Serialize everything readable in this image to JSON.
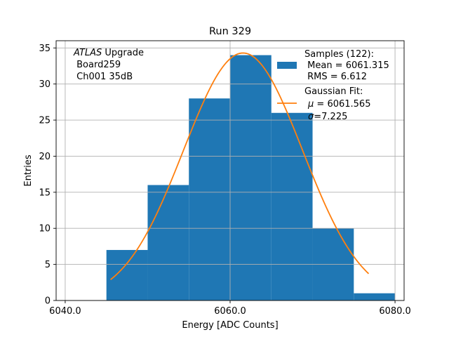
{
  "chart_data": {
    "type": "bar",
    "title": "Run 329",
    "xlabel": "Energy [ADC Counts]",
    "ylabel": "Entries",
    "xlim": [
      6038.9,
      6081.1
    ],
    "ylim": [
      0,
      36
    ],
    "xticks": [
      6040,
      6060,
      6080
    ],
    "xtick_labels": [
      "6040.0",
      "6060.0",
      "6080.0"
    ],
    "yticks": [
      0,
      5,
      10,
      15,
      20,
      25,
      30,
      35
    ],
    "ytick_labels": [
      "0",
      "5",
      "10",
      "15",
      "20",
      "25",
      "30",
      "35"
    ],
    "grid": true,
    "bin_edges": [
      6045,
      6050,
      6055,
      6060,
      6065,
      6070,
      6075,
      6080
    ],
    "values": [
      7,
      16,
      28,
      34,
      26,
      10,
      1
    ],
    "fit": {
      "mu": 6061.565,
      "sigma": 7.225,
      "amplitude": 34.3,
      "x_range": [
        6045.5,
        6076.8
      ]
    },
    "annotation_lines": [
      "ATLAS Upgrade",
      " Board259",
      " Ch001 35dB"
    ],
    "annotation_italic_word": "ATLAS",
    "annotation_rest": " Upgrade",
    "legend_placement": "top-right",
    "legend": {
      "hist_lines": [
        "Samples (122):",
        " Mean = 6061.315",
        " RMS = 6.612"
      ],
      "fit_line1": "Gaussian Fit:",
      "mu_symbol": "μ",
      "mu_text": " = 6061.565",
      "sigma_symbol": "σ",
      "sigma_text": "=7.225"
    },
    "colors": {
      "hist": "#1f77b4",
      "fit": "#ff7f0e",
      "grid": "#b0b0b0"
    }
  }
}
